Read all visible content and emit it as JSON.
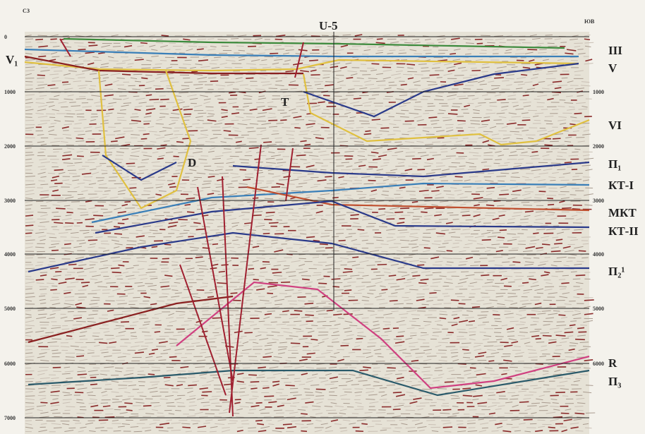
{
  "header": {
    "title": "U-5",
    "left_corner": "СЗ",
    "right_corner": "ЮВ"
  },
  "depth_labels": {
    "left": [
      "0",
      "1000",
      "2000",
      "3000",
      "4000",
      "5000",
      "6000",
      "7000"
    ],
    "right": [
      "1000",
      "2000",
      "3000",
      "4000",
      "5000",
      "6000"
    ]
  },
  "horizon_labels": [
    "III",
    "V",
    "VI",
    "П₁",
    "КТ-I",
    "МКТ",
    "КТ-II",
    "П₂¹",
    "R",
    "П₃"
  ],
  "annotations": {
    "left_horizon": "V₁",
    "fault_t": "T",
    "dome_d": "D"
  }
}
